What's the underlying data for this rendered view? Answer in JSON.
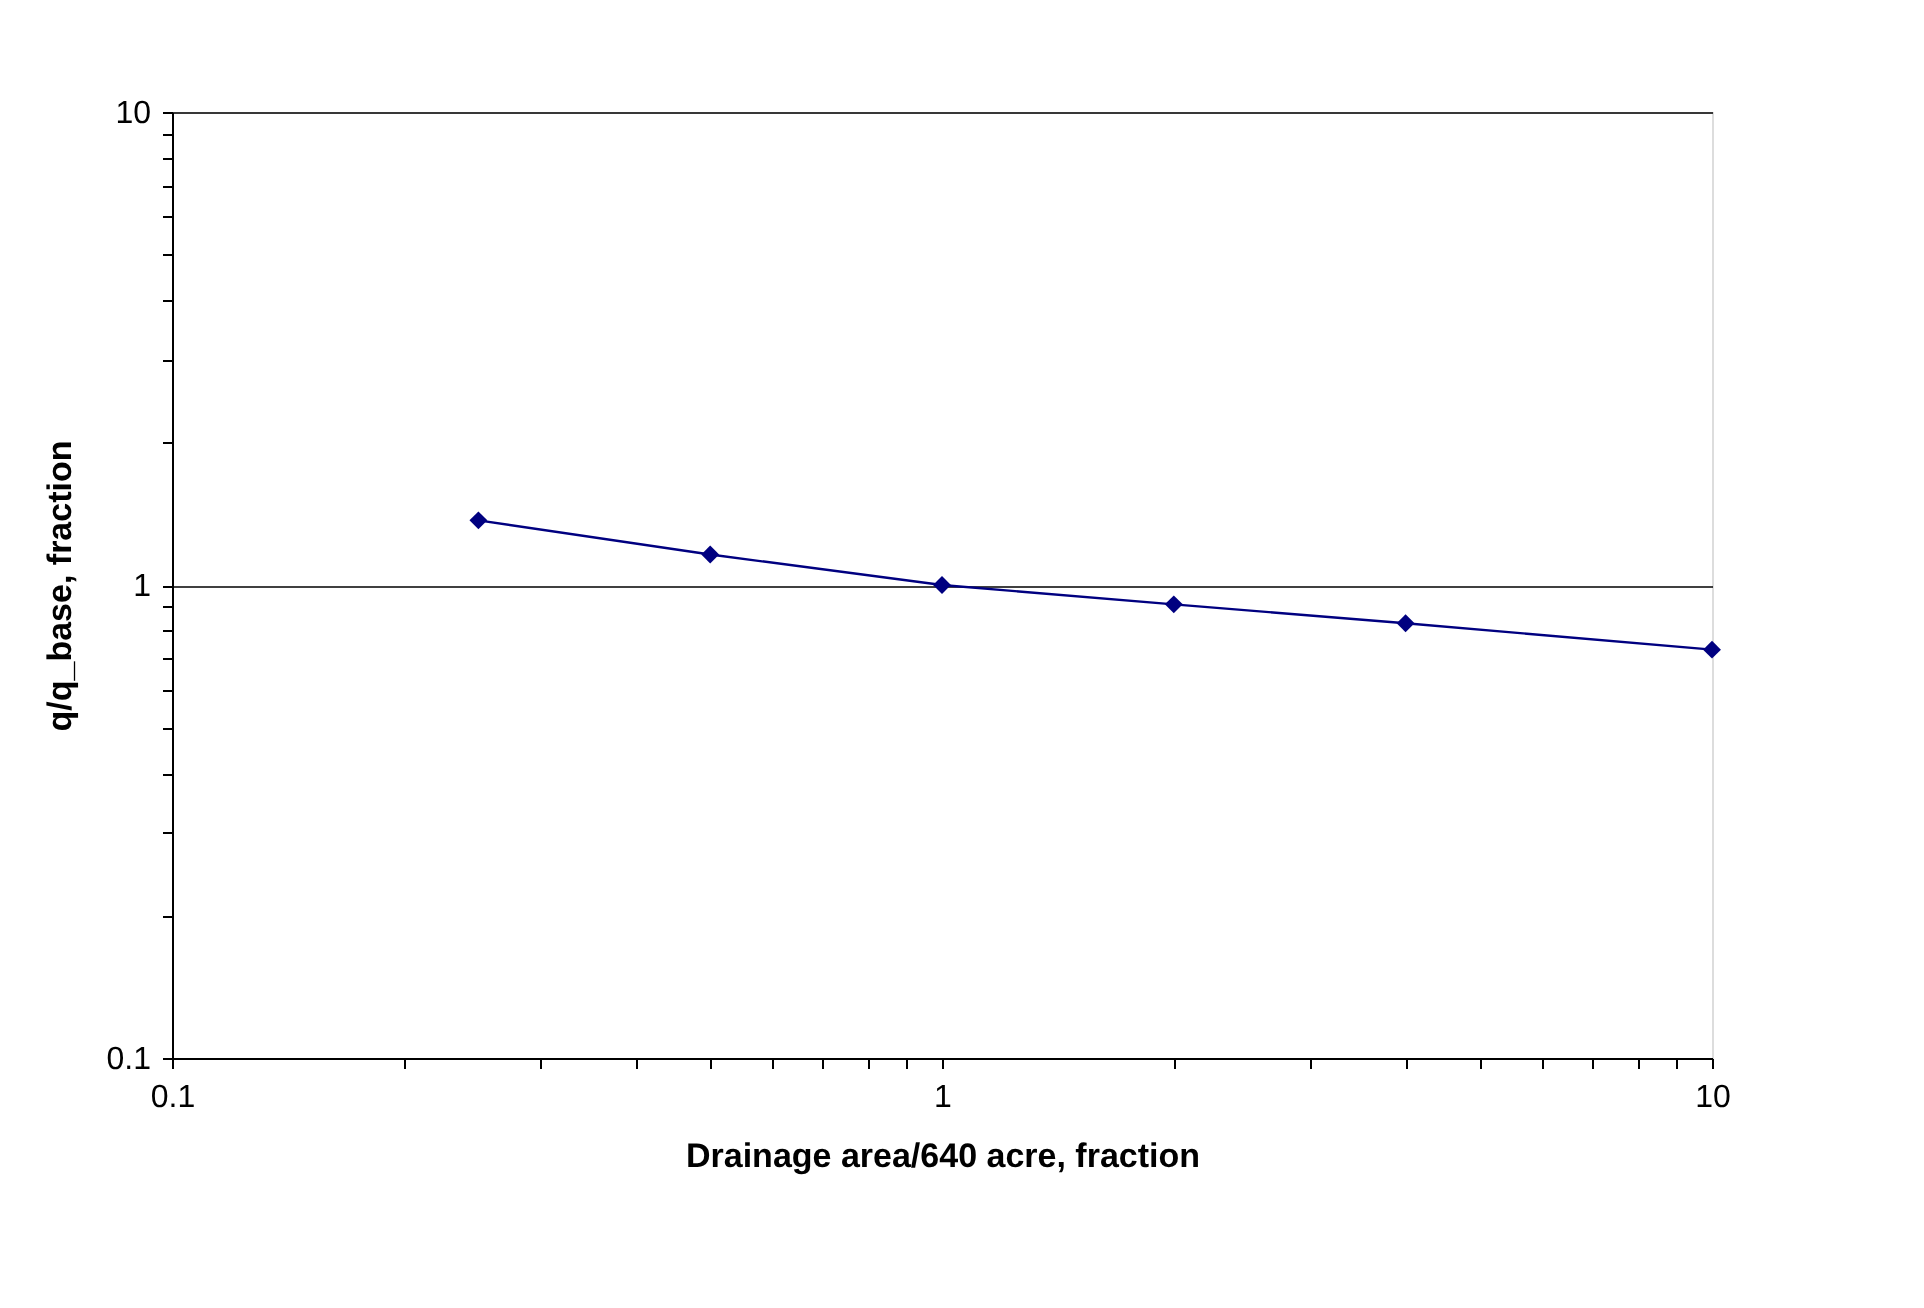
{
  "chart_data": {
    "type": "line",
    "xlabel": "Drainage area/640 acre, fraction",
    "ylabel": "q/q_base, fraction",
    "x": [
      0.25,
      0.5,
      1,
      2,
      4,
      10
    ],
    "series": [
      {
        "color": "#000080",
        "values": [
          1.37,
          1.16,
          1.0,
          0.91,
          0.83,
          0.73
        ]
      }
    ],
    "log": "xy",
    "xlim": [
      0.1,
      10
    ],
    "ylim": [
      0.1,
      10
    ],
    "xticks": [
      0.1,
      {
        "value": 0.2,
        "label": null
      },
      {
        "value": 0.3,
        "label": null
      },
      {
        "value": 0.4,
        "label": null
      },
      {
        "value": 0.5,
        "label": null
      },
      {
        "value": 0.6,
        "label": null
      },
      {
        "value": 0.7,
        "label": null
      },
      {
        "value": 0.8,
        "label": null
      },
      {
        "value": 0.9,
        "label": null
      },
      1,
      {
        "value": 2,
        "label": null
      },
      {
        "value": 3,
        "label": null
      },
      {
        "value": 4,
        "label": null
      },
      {
        "value": 5,
        "label": null
      },
      {
        "value": 6,
        "label": null
      },
      {
        "value": 7,
        "label": null
      },
      {
        "value": 8,
        "label": null
      },
      {
        "value": 9,
        "label": null
      },
      10
    ],
    "yticks": [
      0.1,
      {
        "value": 0.2,
        "label": null
      },
      {
        "value": 0.3,
        "label": null
      },
      {
        "value": 0.4,
        "label": null
      },
      {
        "value": 0.5,
        "label": null
      },
      {
        "value": 0.6,
        "label": null
      },
      {
        "value": 0.7,
        "label": null
      },
      {
        "value": 0.8,
        "label": null
      },
      {
        "value": 0.9,
        "label": null
      },
      1,
      {
        "value": 2,
        "label": null
      },
      {
        "value": 3,
        "label": null
      },
      {
        "value": 4,
        "label": null
      },
      {
        "value": 5,
        "label": null
      },
      {
        "value": 6,
        "label": null
      },
      {
        "value": 7,
        "label": null
      },
      {
        "value": 8,
        "label": null
      },
      {
        "value": 9,
        "label": null
      },
      10
    ],
    "grid": "y",
    "marker": "diamond",
    "line_style": "solid",
    "legend": false
  }
}
